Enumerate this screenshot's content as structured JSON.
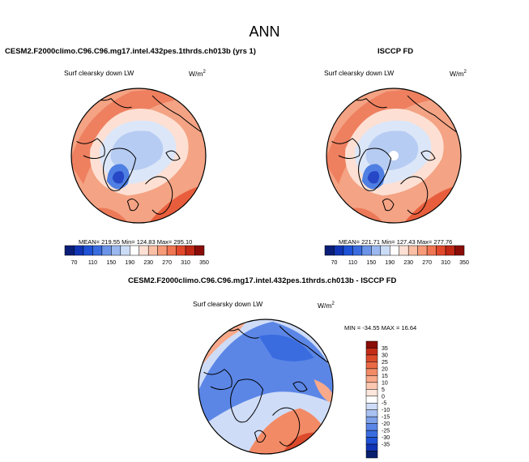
{
  "main_title": "ANN",
  "colors": {
    "colorbar": [
      "#0a1e78",
      "#1034b4",
      "#1f52d6",
      "#3a6ce0",
      "#6b94e8",
      "#9ab8ef",
      "#cbdcf7",
      "#ffffff",
      "#fde0d3",
      "#fbbfa6",
      "#f79a78",
      "#f07552",
      "#e2492c",
      "#c02815",
      "#8a0c08"
    ],
    "diff_colorbar": [
      "#08206e",
      "#1034b4",
      "#1f52d6",
      "#3a6ce0",
      "#5b86e6",
      "#7fa1ea",
      "#a8c1f1",
      "#cfdcf7",
      "#ffffff",
      "#fde6dc",
      "#fbc7b0",
      "#f8a98a",
      "#f38a66",
      "#ea6a46",
      "#dc4a2c",
      "#c42c18",
      "#8a0c08"
    ]
  },
  "chart_data": [
    {
      "type": "heatmap",
      "projection": "polar-stereographic",
      "title": "CESM2.F2000climo.C96.C96.mg17.intel.432pes.1thrds.ch013b (yrs 1)",
      "variable": "Surf clearsky down LW",
      "units_base": "W/m",
      "units_exp": "2",
      "stats_text": "MEAN= 219.55  Min= 124.83  Max= 295.10",
      "mean": 219.55,
      "min": 124.83,
      "max": 295.1,
      "colorbar_ticks": [
        "70",
        "110",
        "150",
        "190",
        "230",
        "270",
        "310",
        "350"
      ]
    },
    {
      "type": "heatmap",
      "projection": "polar-stereographic",
      "title": "ISCCP FD",
      "variable": "Surf clearsky down LW",
      "units_base": "W/m",
      "units_exp": "2",
      "stats_text": "MEAN= 221.71  Min= 127.43  Max= 277.76",
      "mean": 221.71,
      "min": 127.43,
      "max": 277.76,
      "colorbar_ticks": [
        "70",
        "110",
        "150",
        "190",
        "230",
        "270",
        "310",
        "350"
      ]
    },
    {
      "type": "heatmap",
      "projection": "polar-stereographic",
      "title": "CESM2.F2000climo.C96.C96.mg17.intel.432pes.1thrds.ch013b - ISCCP FD",
      "variable": "Surf clearsky down LW",
      "units_base": "W/m",
      "units_exp": "2",
      "stats_text": "MIN = -34.55 MAX =  16.64",
      "min": -34.55,
      "max": 16.64,
      "colorbar_ticks": [
        "35",
        "30",
        "25",
        "20",
        "15",
        "10",
        "5",
        "0",
        "-5",
        "-10",
        "-15",
        "-20",
        "-25",
        "-30",
        "-35"
      ]
    }
  ]
}
